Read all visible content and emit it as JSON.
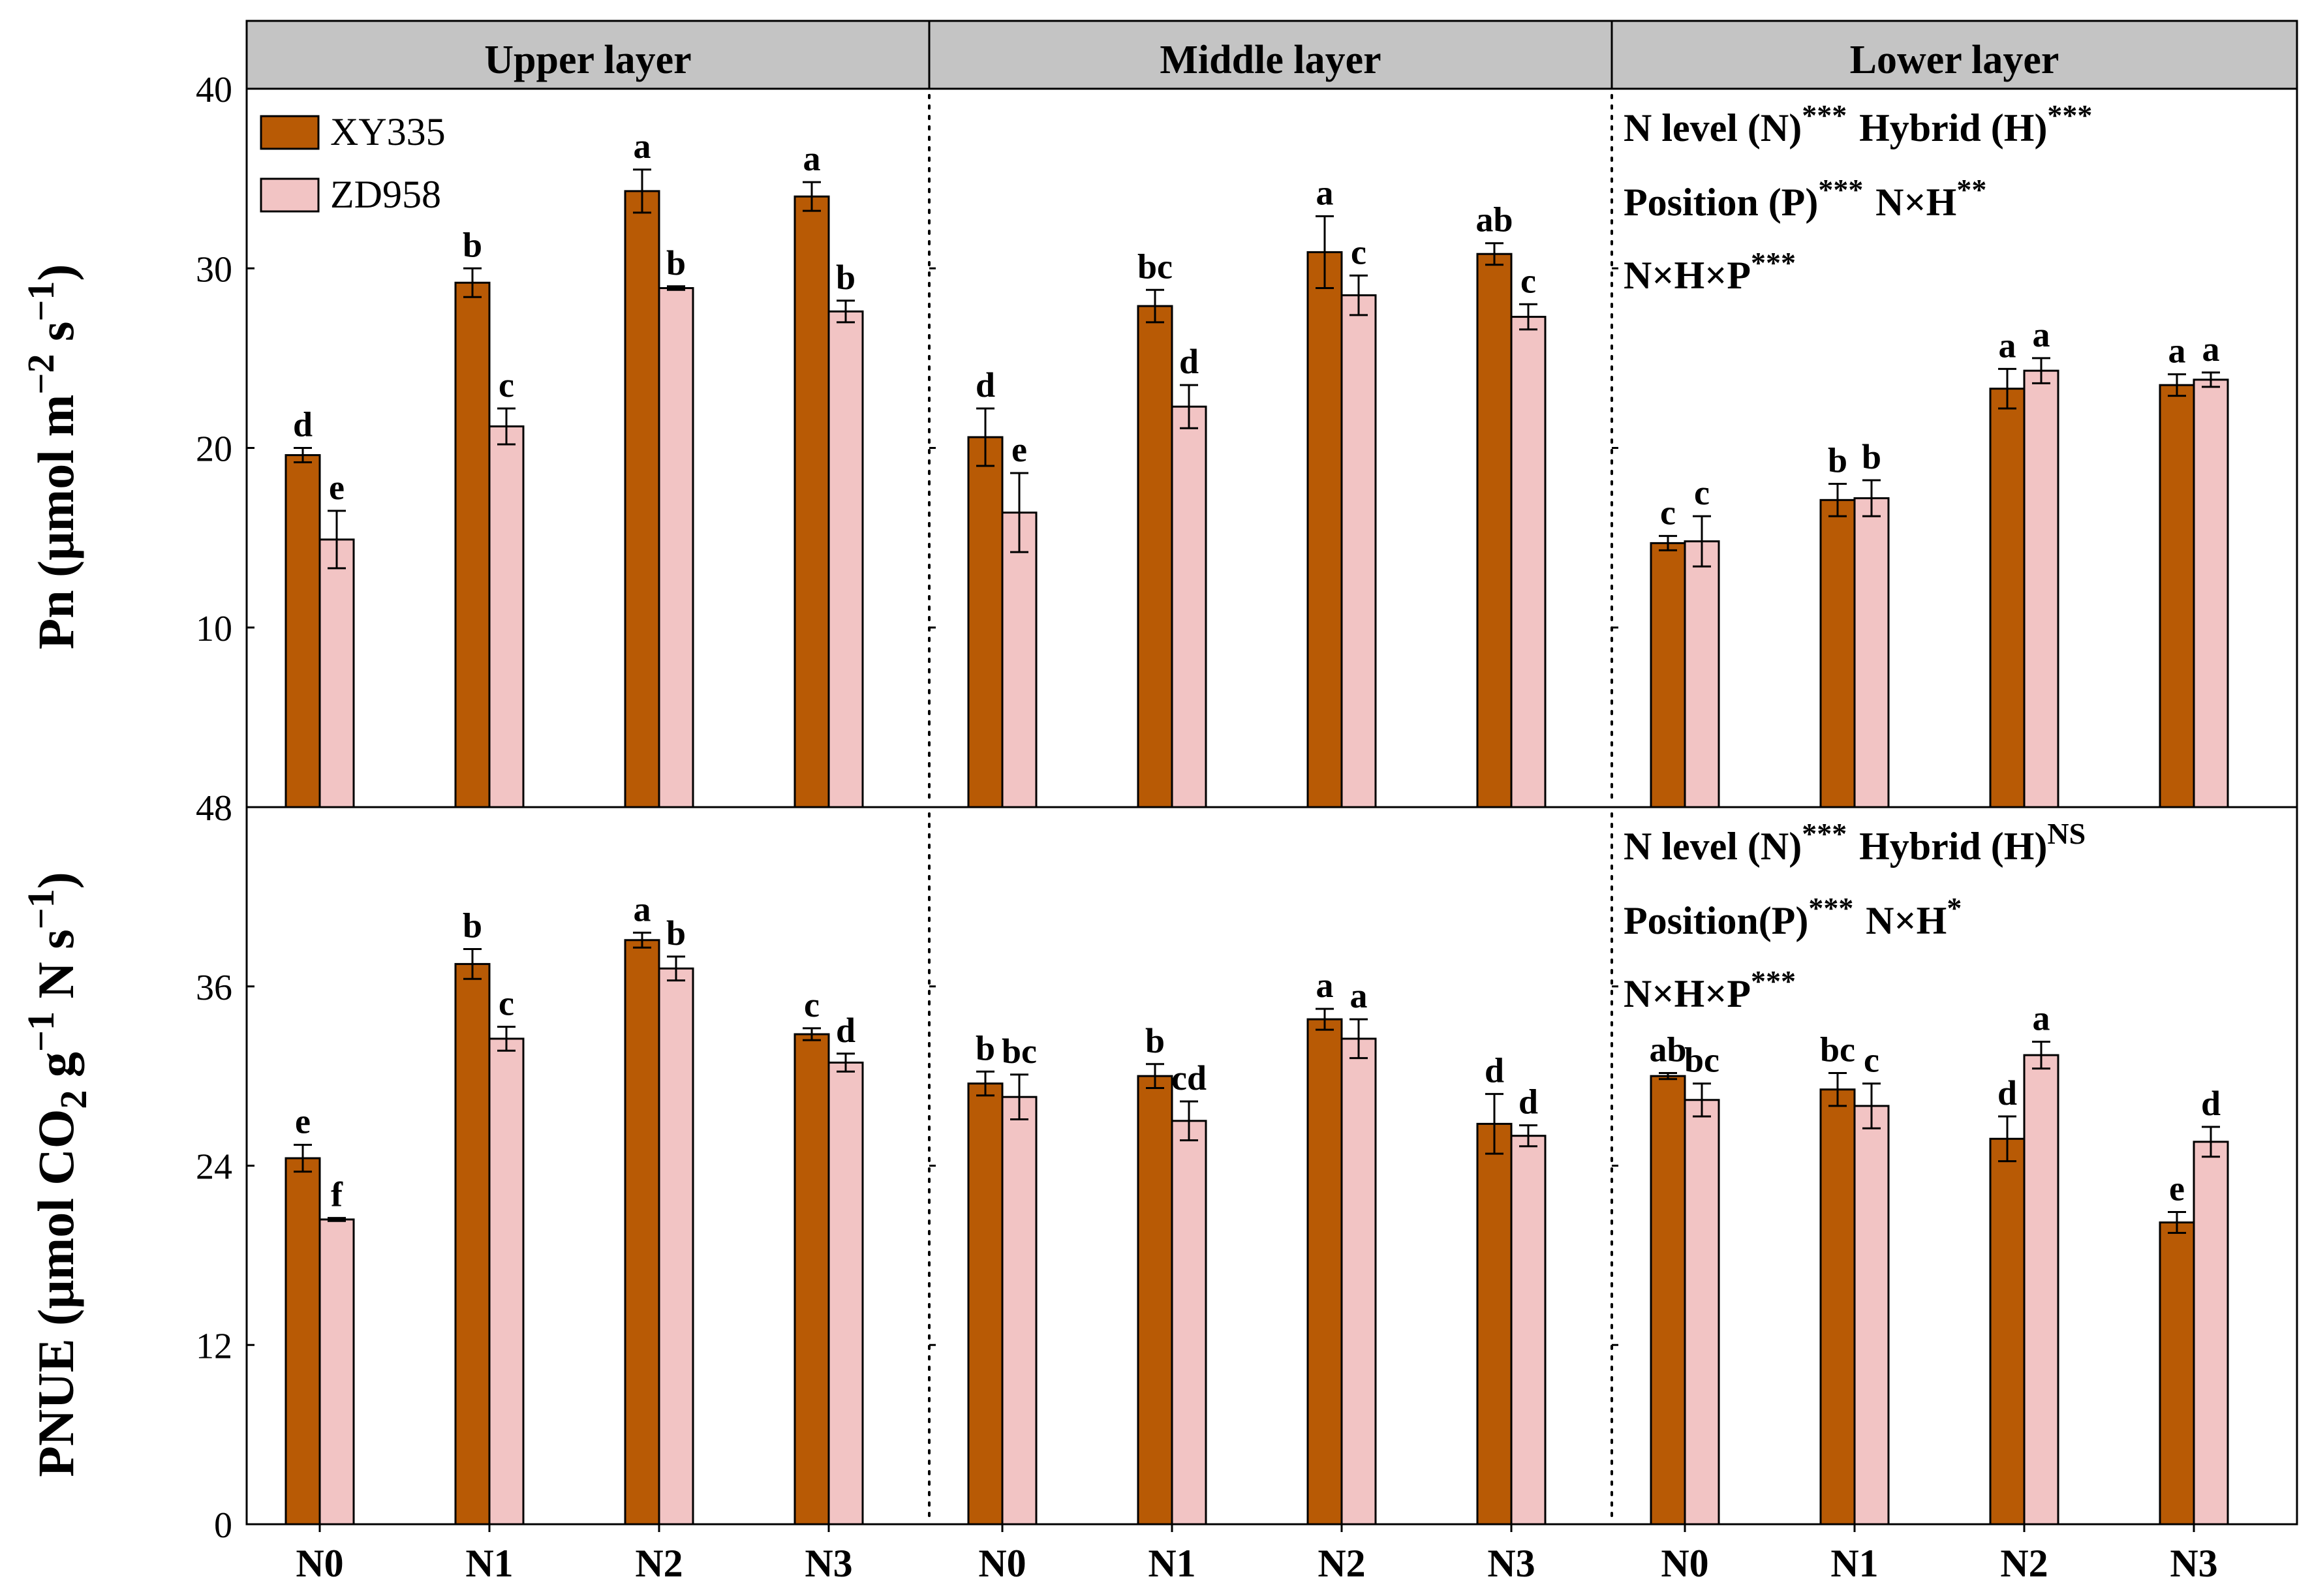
{
  "chart_data": {
    "type": "bar",
    "layers": [
      "Upper layer",
      "Middle layer",
      "Lower layer"
    ],
    "categories": [
      "N0",
      "N1",
      "N2",
      "N3"
    ],
    "legend": [
      "XY335",
      "ZD958"
    ],
    "colors": {
      "XY335": "#B85A05",
      "ZD958": "#F2C4C4",
      "header": "#C4C4C4"
    },
    "panels": [
      {
        "id": "pn",
        "ylabel": "Pn (μmol m−2 s−1)",
        "ylabel_parts": {
          "main": "Pn (μmol m",
          "sup1": "−2",
          "mid": " s",
          "sup2": "−1",
          "end": ")"
        },
        "ylim": [
          0,
          40
        ],
        "yticks": [
          10,
          20,
          30,
          40
        ],
        "ytick_labels": [
          "10",
          "20",
          "30",
          "40"
        ],
        "zero_label": "48",
        "series": [
          {
            "name": "XY335",
            "values": [
              [
                19.6,
                29.2,
                34.3,
                34.0
              ],
              [
                20.6,
                27.9,
                30.9,
                30.8
              ],
              [
                14.7,
                17.1,
                23.3,
                23.5
              ]
            ],
            "errors": [
              [
                0.4,
                0.8,
                1.2,
                0.8
              ],
              [
                1.6,
                0.9,
                2.0,
                0.6
              ],
              [
                0.4,
                0.9,
                1.1,
                0.6
              ]
            ],
            "letters": [
              [
                "d",
                "b",
                "a",
                "a"
              ],
              [
                "d",
                "bc",
                "a",
                "ab"
              ],
              [
                "c",
                "b",
                "a",
                "a"
              ]
            ]
          },
          {
            "name": "ZD958",
            "values": [
              [
                14.9,
                21.2,
                28.9,
                27.6
              ],
              [
                16.4,
                22.3,
                28.5,
                27.3
              ],
              [
                14.8,
                17.2,
                24.3,
                23.8
              ]
            ],
            "errors": [
              [
                1.6,
                1.0,
                0.1,
                0.6
              ],
              [
                2.2,
                1.2,
                1.1,
                0.7
              ],
              [
                1.4,
                1.0,
                0.7,
                0.4
              ]
            ],
            "letters": [
              [
                "e",
                "c",
                "b",
                "b"
              ],
              [
                "e",
                "d",
                "c",
                "c"
              ],
              [
                "c",
                "b",
                "a",
                "a"
              ]
            ]
          }
        ],
        "stats": [
          [
            {
              "t": "N level (N)",
              "s": "***"
            },
            {
              "t": "Hybrid (H)",
              "s": "***"
            }
          ],
          [
            {
              "t": "Position (P)",
              "s": "***"
            },
            {
              "t": "N×H",
              "s": "**"
            }
          ],
          [
            {
              "t": "N×H×P",
              "s": "***"
            }
          ]
        ]
      },
      {
        "id": "pnue",
        "ylabel": "PNUE (μmol CO2 g−1 N s−1)",
        "ylabel_parts": {
          "main": "PNUE (μmol CO",
          "sub": "2",
          "mid": " g",
          "sup1": "−1",
          "mid2": " N s",
          "sup2": "−1",
          "end": ")"
        },
        "ylim": [
          0,
          48
        ],
        "yticks": [
          0,
          12,
          24,
          36
        ],
        "ytick_labels": [
          "0",
          "12",
          "24",
          "36"
        ],
        "series": [
          {
            "name": "XY335",
            "values": [
              [
                24.5,
                37.5,
                39.1,
                32.8
              ],
              [
                29.5,
                30.0,
                33.8,
                26.8
              ],
              [
                30.0,
                29.1,
                25.8,
                20.2
              ]
            ],
            "errors": [
              [
                0.9,
                1.0,
                0.5,
                0.4
              ],
              [
                0.8,
                0.8,
                0.7,
                2.0
              ],
              [
                0.2,
                1.1,
                1.5,
                0.7
              ]
            ],
            "letters": [
              [
                "e",
                "b",
                "a",
                "c"
              ],
              [
                "b",
                "b",
                "a",
                "d"
              ],
              [
                "ab",
                "bc",
                "d",
                "e"
              ]
            ]
          },
          {
            "name": "ZD958",
            "values": [
              [
                20.4,
                32.5,
                37.2,
                30.9
              ],
              [
                28.6,
                27.0,
                32.5,
                26.0
              ],
              [
                28.4,
                28.0,
                31.4,
                25.6
              ]
            ],
            "errors": [
              [
                0.1,
                0.8,
                0.8,
                0.6
              ],
              [
                1.5,
                1.3,
                1.3,
                0.7
              ],
              [
                1.1,
                1.5,
                0.9,
                1.0
              ]
            ],
            "letters": [
              [
                "f",
                "c",
                "b",
                "d"
              ],
              [
                "bc",
                "cd",
                "a",
                "d"
              ],
              [
                "bc",
                "c",
                "a",
                "d"
              ]
            ]
          }
        ],
        "stats": [
          [
            {
              "t": "N level (N)",
              "s": "***"
            },
            {
              "t": "Hybrid (H)",
              "s": "NS"
            }
          ],
          [
            {
              "t": "Position(P)",
              "s": "***"
            },
            {
              "t": "N×H",
              "s": "*"
            }
          ],
          [
            {
              "t": "N×H×P",
              "s": "***"
            }
          ]
        ]
      }
    ]
  }
}
